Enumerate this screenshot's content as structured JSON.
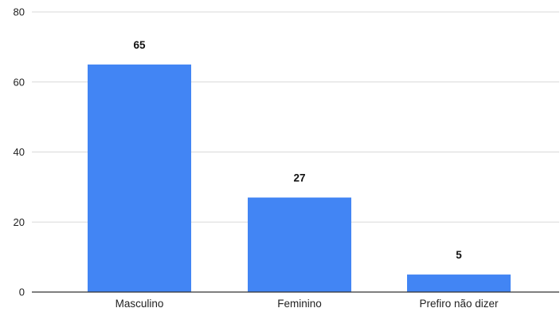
{
  "chart_data": {
    "type": "bar",
    "categories": [
      "Masculino",
      "Feminino",
      "Prefiro não dizer"
    ],
    "values": [
      65,
      27,
      5
    ],
    "data_labels": [
      "65",
      "27",
      "5"
    ],
    "title": "",
    "xlabel": "",
    "ylabel": "",
    "ylim": [
      0,
      80
    ],
    "yticks": [
      0,
      20,
      40,
      60,
      80
    ],
    "ytick_labels": [
      "0",
      "20",
      "40",
      "60",
      "80"
    ],
    "grid": true,
    "legend": "none",
    "bar_color": "#4285f4"
  }
}
